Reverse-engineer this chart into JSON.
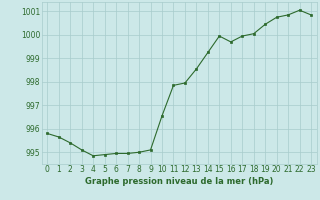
{
  "hours": [
    0,
    1,
    2,
    3,
    4,
    5,
    6,
    7,
    8,
    9,
    10,
    11,
    12,
    13,
    14,
    15,
    16,
    17,
    18,
    19,
    20,
    21,
    22,
    23
  ],
  "pressure": [
    995.8,
    995.65,
    995.4,
    995.1,
    994.85,
    994.9,
    994.95,
    994.95,
    995.0,
    995.1,
    996.55,
    997.85,
    997.95,
    998.55,
    999.25,
    999.95,
    999.7,
    999.95,
    1000.05,
    1000.45,
    1000.75,
    1000.85,
    1001.05,
    1000.85
  ],
  "line_color": "#2d6a2d",
  "marker_color": "#2d6a2d",
  "bg_color": "#cce8e8",
  "grid_color": "#a8cccc",
  "xlabel": "Graphe pression niveau de la mer (hPa)",
  "ylim": [
    994.5,
    1001.4
  ],
  "yticks": [
    995,
    996,
    997,
    998,
    999,
    1000,
    1001
  ],
  "xlabel_fontsize": 6.0,
  "tick_fontsize": 5.5,
  "label_color": "#2d6a2d"
}
